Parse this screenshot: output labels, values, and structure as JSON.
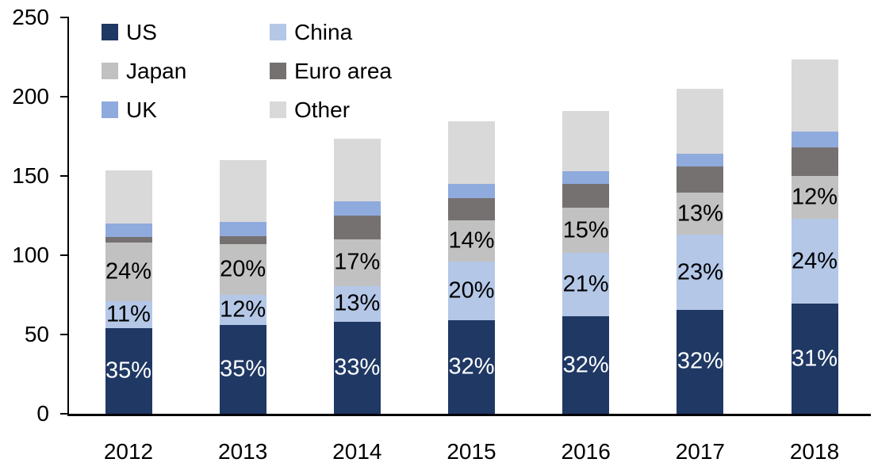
{
  "chart_data": {
    "type": "bar",
    "subtype": "stacked",
    "title": "",
    "xlabel": "",
    "ylabel": "",
    "categories": [
      "2012",
      "2013",
      "2014",
      "2015",
      "2016",
      "2017",
      "2018"
    ],
    "series": [
      {
        "name": "US",
        "color": "#1F3864",
        "values": [
          54.0,
          56.0,
          58.0,
          59.1,
          61.3,
          65.6,
          69.3
        ],
        "data_labels": [
          "35%",
          "35%",
          "33%",
          "32%",
          "32%",
          "32%",
          "31%"
        ],
        "label_color": "#FFFFFF"
      },
      {
        "name": "China",
        "color": "#B4C7E7",
        "values": [
          17.0,
          19.2,
          22.6,
          36.9,
          40.2,
          47.2,
          53.6
        ],
        "data_labels": [
          "11%",
          "12%",
          "13%",
          "20%",
          "21%",
          "23%",
          "24%"
        ],
        "label_color": "#000000"
      },
      {
        "name": "Japan",
        "color": "#C1C1C1",
        "values": [
          37.0,
          32.0,
          29.6,
          25.8,
          28.3,
          26.7,
          27.0
        ],
        "data_labels": [
          "24%",
          "20%",
          "17%",
          "14%",
          "15%",
          "13%",
          "12%"
        ],
        "label_color": "#000000"
      },
      {
        "name": "Euro area",
        "color": "#767171",
        "values": [
          3.5,
          4.7,
          14.6,
          14.1,
          15.0,
          16.7,
          18.3
        ],
        "data_labels": null,
        "label_color": null
      },
      {
        "name": "UK",
        "color": "#8FAADC",
        "values": [
          8.5,
          9.0,
          9.1,
          8.9,
          8.1,
          7.8,
          9.9
        ],
        "data_labels": null,
        "label_color": null
      },
      {
        "name": "Other",
        "color": "#D9D9D9",
        "values": [
          33.7,
          39.3,
          39.7,
          39.8,
          38.3,
          41.0,
          45.4
        ],
        "data_labels": null,
        "label_color": null
      }
    ],
    "totals": [
      153.7,
      160.2,
      173.6,
      184.6,
      191.2,
      205.0,
      223.5
    ],
    "y_axis": {
      "min": 0,
      "max": 250,
      "tick_labels": [
        "0",
        "50",
        "100",
        "150",
        "200",
        "250"
      ],
      "tick_values": [
        0,
        50,
        100,
        150,
        200,
        250
      ]
    },
    "grid": false,
    "legend_position": "top-left",
    "legend_order": [
      "US",
      "China",
      "Japan",
      "Euro area",
      "UK",
      "Other"
    ],
    "axis_color": "#000000"
  }
}
